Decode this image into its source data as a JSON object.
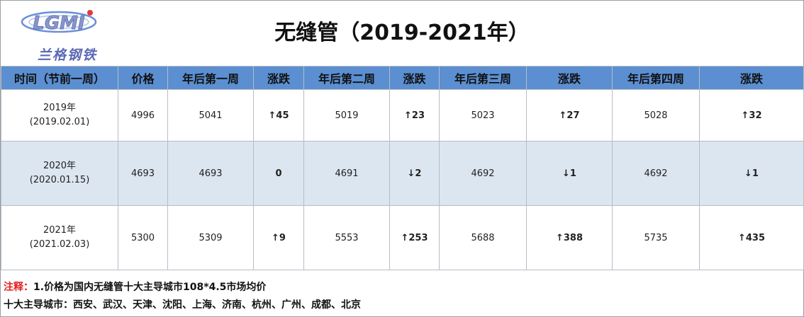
{
  "logo": {
    "mark": "LGMI",
    "text": "兰格钢铁"
  },
  "title": "无缝管（2019-2021年）",
  "columns": [
    "时间（节前一周）",
    "价格",
    "年后第一周",
    "涨跌",
    "年后第二周",
    "涨跌",
    "年后第三周",
    "涨跌",
    "年后第四周",
    "涨跌"
  ],
  "rows": [
    {
      "year": "2019年",
      "date": "(2019.02.01)",
      "price": "4996",
      "weeks": [
        {
          "price": "5041",
          "change": "↑45",
          "dir": "up"
        },
        {
          "price": "5019",
          "change": "↑23",
          "dir": "up"
        },
        {
          "price": "5023",
          "change": "↑27",
          "dir": "up"
        },
        {
          "price": "5028",
          "change": "↑32",
          "dir": "up"
        }
      ]
    },
    {
      "year": "2020年",
      "date": "(2020.01.15)",
      "price": "4693",
      "weeks": [
        {
          "price": "4693",
          "change": "0",
          "dir": "zero"
        },
        {
          "price": "4691",
          "change": "↓2",
          "dir": "down"
        },
        {
          "price": "4692",
          "change": "↓1",
          "dir": "down"
        },
        {
          "price": "4692",
          "change": "↓1",
          "dir": "down"
        }
      ]
    },
    {
      "year": "2021年",
      "date": "(2021.02.03)",
      "price": "5300",
      "weeks": [
        {
          "price": "5309",
          "change": "↑9",
          "dir": "up"
        },
        {
          "price": "5553",
          "change": "↑253",
          "dir": "up"
        },
        {
          "price": "5688",
          "change": "↑388",
          "dir": "up"
        },
        {
          "price": "5735",
          "change": "↑435",
          "dir": "up"
        }
      ]
    }
  ],
  "notes": {
    "label": "注释：",
    "line1": "1.价格为国内无缝管十大主导城市108*4.5市场均价",
    "line2": "十大主导城市：西安、武汉、天津、沈阳、上海、济南、杭州、广州、成都、北京"
  },
  "colors": {
    "header_bg": "#5b8fd1",
    "band_bg": "#dce6f1",
    "up": "#e02020",
    "down": "#1f9a3a"
  }
}
